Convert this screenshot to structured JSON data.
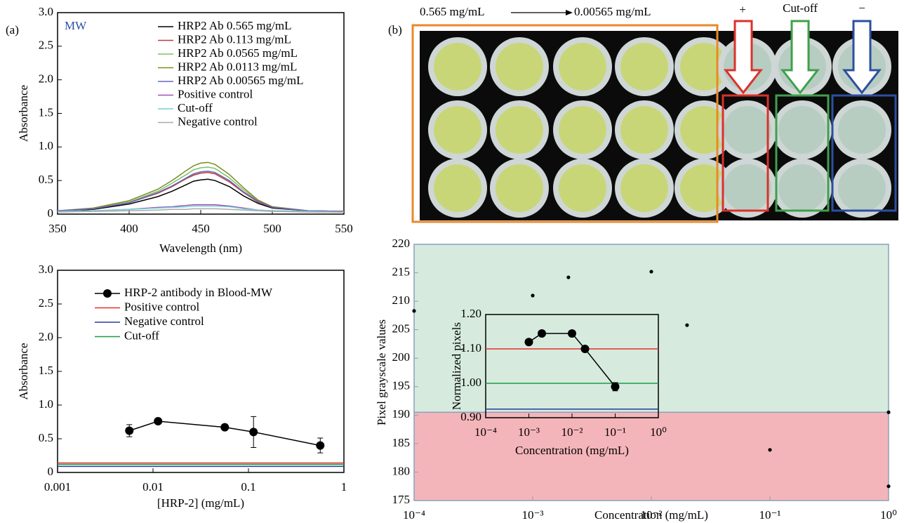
{
  "chart_data": [
    {
      "type": "line",
      "panel_label": "(a)",
      "annotation": "MW",
      "xlabel": "Wavelength (nm)",
      "ylabel": "Absorbance",
      "x": [
        350,
        375,
        400,
        420,
        430,
        440,
        445,
        450,
        455,
        460,
        470,
        480,
        490,
        500,
        525,
        550
      ],
      "xlim": [
        350,
        550
      ],
      "xticks": [
        350,
        400,
        450,
        500,
        550
      ],
      "ylim": [
        0,
        3
      ],
      "yticks": [
        0,
        0.5,
        {
          "value": 1,
          "label": "1.0"
        },
        1.5,
        {
          "value": 2,
          "label": "2.0"
        },
        2.5,
        {
          "value": 3,
          "label": "3.0"
        }
      ],
      "series": [
        {
          "name": "HRP2 Ab 0.565 mg/mL",
          "color": "#000000",
          "values": [
            0.05,
            0.07,
            0.15,
            0.26,
            0.34,
            0.44,
            0.49,
            0.51,
            0.52,
            0.5,
            0.41,
            0.27,
            0.16,
            0.09,
            0.05,
            0.04
          ]
        },
        {
          "name": "HRP2 Ab 0.113 mg/mL",
          "color": "#c0393b",
          "values": [
            0.05,
            0.08,
            0.17,
            0.31,
            0.41,
            0.53,
            0.58,
            0.61,
            0.62,
            0.6,
            0.48,
            0.32,
            0.18,
            0.1,
            0.05,
            0.04
          ]
        },
        {
          "name": "HRP2 Ab 0.0565 mg/mL",
          "color": "#78c46a",
          "values": [
            0.05,
            0.08,
            0.18,
            0.34,
            0.46,
            0.59,
            0.66,
            0.69,
            0.7,
            0.68,
            0.54,
            0.36,
            0.2,
            0.11,
            0.05,
            0.04
          ]
        },
        {
          "name": "HRP2 Ab 0.0113 mg/mL",
          "color": "#7d8c1e",
          "values": [
            0.05,
            0.09,
            0.2,
            0.37,
            0.5,
            0.65,
            0.72,
            0.76,
            0.77,
            0.74,
            0.59,
            0.39,
            0.21,
            0.11,
            0.05,
            0.04
          ]
        },
        {
          "name": "HRP2 Ab 0.00565 mg/mL",
          "color": "#6a66c0",
          "values": [
            0.05,
            0.08,
            0.17,
            0.32,
            0.42,
            0.54,
            0.6,
            0.63,
            0.64,
            0.62,
            0.5,
            0.33,
            0.19,
            0.1,
            0.05,
            0.04
          ]
        },
        {
          "name": "Positive control",
          "color": "#a050b8",
          "values": [
            0.04,
            0.05,
            0.07,
            0.1,
            0.11,
            0.13,
            0.14,
            0.14,
            0.14,
            0.14,
            0.12,
            0.09,
            0.06,
            0.05,
            0.04,
            0.03
          ]
        },
        {
          "name": "Cut-off",
          "color": "#72d0d8",
          "values": [
            0.04,
            0.05,
            0.07,
            0.09,
            0.1,
            0.11,
            0.12,
            0.12,
            0.12,
            0.12,
            0.11,
            0.08,
            0.06,
            0.05,
            0.04,
            0.03
          ]
        },
        {
          "name": "Negative control",
          "color": "#aaaaaa",
          "values": [
            0.03,
            0.04,
            0.05,
            0.06,
            0.07,
            0.07,
            0.08,
            0.08,
            0.08,
            0.08,
            0.07,
            0.06,
            0.05,
            0.04,
            0.03,
            0.03
          ]
        }
      ]
    },
    {
      "type": "line",
      "log_x": true,
      "xlabel": "[HRP-2] (mg/mL)",
      "ylabel": "Absorbance",
      "xlim": [
        0.001,
        1
      ],
      "xticks": [
        0.001,
        0.01,
        0.1,
        1
      ],
      "ylim": [
        0,
        3
      ],
      "yticks": [
        0,
        0.5,
        {
          "value": 1,
          "label": "1.0"
        },
        1.5,
        {
          "value": 2,
          "label": "2.0"
        },
        2.5,
        {
          "value": 3,
          "label": "3.0"
        }
      ],
      "series": [
        {
          "name": "HRP-2 antibody in Blood-MW",
          "color": "#000000",
          "marker": true,
          "x": [
            0.00565,
            0.0113,
            0.0565,
            0.113,
            0.565
          ],
          "values": [
            0.62,
            0.76,
            0.67,
            0.6,
            0.4
          ],
          "errors": [
            0.09,
            0.03,
            0.04,
            0.23,
            0.11
          ]
        },
        {
          "name": "Positive control",
          "color": "#e8302a",
          "x": [
            0.001,
            1
          ],
          "values": [
            0.14,
            0.14
          ]
        },
        {
          "name": "Negative control",
          "color": "#2b3aa0",
          "x": [
            0.001,
            1
          ],
          "values": [
            0.09,
            0.09
          ]
        },
        {
          "name": "Cut-off",
          "color": "#1e9a45",
          "x": [
            0.001,
            1
          ],
          "values": [
            0.12,
            0.12
          ]
        }
      ]
    },
    {
      "type": "scatter",
      "log_x": true,
      "xlabel": "Concentration (mg/mL)",
      "ylabel": "Pixel grayscale values",
      "xlim": [
        0.0001,
        1
      ],
      "xticks": [
        {
          "value": 0.0001,
          "label": "10⁻⁴"
        },
        {
          "value": 0.001,
          "label": "10⁻³"
        },
        {
          "value": 0.01,
          "label": "10⁻²"
        },
        {
          "value": 0.1,
          "label": "10⁻¹"
        },
        {
          "value": 1,
          "label": "10⁰"
        }
      ],
      "ylim": [
        175,
        220
      ],
      "yticks": [
        175,
        180,
        185,
        190,
        195,
        200,
        205,
        210,
        215,
        220
      ],
      "threshold": 190.5,
      "region_colors": [
        "#f4b5ba",
        "#d6ebde"
      ],
      "series": [
        {
          "color": "#000000",
          "x": [
            0.0001,
            0.001,
            0.002,
            0.01,
            0.02,
            0.1,
            1,
            1
          ],
          "values": [
            208.3,
            211,
            214.2,
            215.2,
            205.8,
            183.9,
            190.5,
            177.5
          ]
        }
      ]
    },
    {
      "type": "line",
      "log_x": true,
      "xlabel": "Concentration (mg/mL)",
      "ylabel": "Normalized pixels",
      "xlim": [
        0.0001,
        1
      ],
      "xticks": [
        {
          "value": 0.0001,
          "label": "10⁻⁴"
        },
        {
          "value": 0.001,
          "label": "10⁻³"
        },
        {
          "value": 0.01,
          "label": "10⁻²"
        },
        {
          "value": 0.1,
          "label": "10⁻¹"
        },
        {
          "value": 1,
          "label": "10⁰"
        }
      ],
      "ylim": [
        0.9,
        1.2
      ],
      "yticks": [
        {
          "value": 0.9,
          "label": "0.90"
        },
        {
          "value": 1,
          "label": "1.00"
        },
        {
          "value": 1.1,
          "label": "1.10"
        },
        {
          "value": 1.2,
          "label": "1.20"
        }
      ],
      "series": [
        {
          "color": "#e8302a",
          "x": [
            0.0001,
            1
          ],
          "values": [
            1.1,
            1.1
          ]
        },
        {
          "color": "#1e9a45",
          "x": [
            0.0001,
            1
          ],
          "values": [
            1,
            1
          ]
        },
        {
          "color": "#2b3aa0",
          "x": [
            0.0001,
            1
          ],
          "values": [
            0.925,
            0.925
          ]
        },
        {
          "color": "#000000",
          "marker": true,
          "x": [
            0.001,
            0.002,
            0.01,
            0.02,
            0.1
          ],
          "values": [
            1.12,
            1.145,
            1.145,
            1.1,
            0.99
          ],
          "errors": [
            0,
            0,
            0,
            0,
            0.012
          ]
        }
      ]
    }
  ],
  "photo": {
    "panel_label": "(b)",
    "range_start": "0.565 mg/mL",
    "range_end": "0.00565 mg/mL",
    "well_labels": [
      "+",
      "Cut-off",
      "−"
    ]
  }
}
